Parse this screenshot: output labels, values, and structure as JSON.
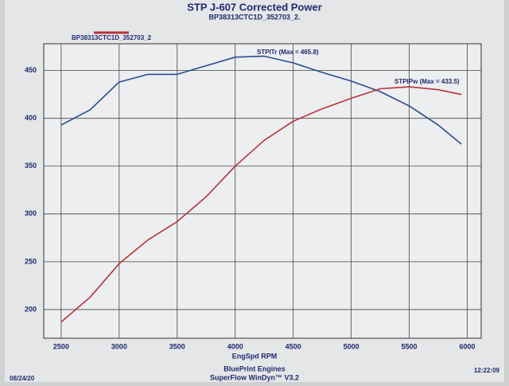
{
  "chart_data": {
    "type": "line",
    "title": "STP J-607 Corrected Power",
    "subtitle": "BP38313CTC1D_352703_2.",
    "legend_label": "BP38313CTC1D_352703_2",
    "xlabel": "EngSpd RPM",
    "footer": [
      "BluePrint Engines",
      "SuperFlow WinDyn™ V3.2"
    ],
    "date": "08/24/20",
    "time": "12:22:09",
    "annotations": [
      "STPITr (Max = 465.8)",
      "STPIPw (Max = 433.5)"
    ],
    "x": [
      2500,
      2750,
      3000,
      3250,
      3500,
      3750,
      4000,
      4250,
      4500,
      4750,
      5000,
      5250,
      5500,
      5750,
      5950
    ],
    "series": [
      {
        "name": "STPITr",
        "color": "#2b4c8c",
        "values": [
          393,
          409,
          438,
          446,
          446,
          455,
          464,
          465,
          458,
          448,
          439,
          428,
          413,
          393,
          373
        ]
      },
      {
        "name": "STPIPw",
        "color": "#b8323c",
        "values": [
          187,
          213,
          248,
          273,
          292,
          318,
          350,
          377,
          397,
          410,
          421,
          431,
          433,
          430,
          425
        ]
      }
    ],
    "xlim": [
      2350,
      6120
    ],
    "ylim": [
      170,
      478
    ],
    "xticks": [
      2500,
      3000,
      3500,
      4000,
      4500,
      5000,
      5500,
      6000
    ],
    "yticks": [
      200,
      250,
      300,
      350,
      400,
      450
    ],
    "grid": true
  }
}
